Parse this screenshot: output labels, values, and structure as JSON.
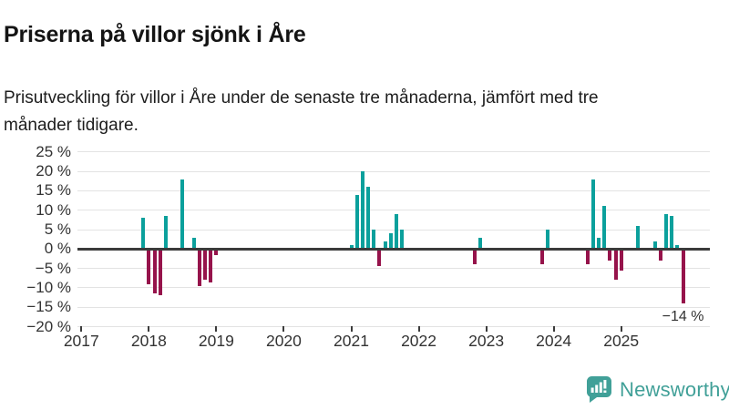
{
  "header": {
    "title": "Priserna på villor sjönk i Åre",
    "subtitle": "Prisutveckling för villor i Åre under de senaste tre månaderna, jämfört med tre månader tidigare."
  },
  "chart_data": {
    "type": "bar",
    "title": "Priserna på villor sjönk i Åre",
    "unit": "%",
    "grid": true,
    "y_axis": {
      "min": -20,
      "max": 25,
      "step": 5,
      "tick_values": [
        25,
        20,
        15,
        10,
        5,
        0,
        -5,
        -10,
        -15,
        -20
      ],
      "tick_labels": [
        "25 %",
        "20 %",
        "15 %",
        "10 %",
        "5 %",
        "0 %",
        "−5 %",
        "−10 %",
        "−15 %",
        "−20 %"
      ]
    },
    "x_axis": {
      "year_labels": [
        "2017",
        "2018",
        "2019",
        "2020",
        "2021",
        "2022",
        "2023",
        "2024",
        "2025"
      ]
    },
    "colors": {
      "positive": "#0ba09c",
      "negative": "#96134b",
      "zero_line": "#3b3b3b",
      "gridline": "#e3e3e3"
    },
    "annotation": {
      "text": "−14 %",
      "month": "2025-12"
    },
    "points": [
      {
        "month": "2017-12",
        "value": 8
      },
      {
        "month": "2018-01",
        "value": -9
      },
      {
        "month": "2018-02",
        "value": -11.5
      },
      {
        "month": "2018-03",
        "value": -12
      },
      {
        "month": "2018-04",
        "value": 8.5
      },
      {
        "month": "2018-07",
        "value": 18
      },
      {
        "month": "2018-09",
        "value": 3
      },
      {
        "month": "2018-10",
        "value": -9.5
      },
      {
        "month": "2018-11",
        "value": -8
      },
      {
        "month": "2018-12",
        "value": -8.5
      },
      {
        "month": "2019-01",
        "value": -1.5
      },
      {
        "month": "2021-01",
        "value": 1
      },
      {
        "month": "2021-02",
        "value": 14
      },
      {
        "month": "2021-03",
        "value": 20
      },
      {
        "month": "2021-04",
        "value": 16
      },
      {
        "month": "2021-05",
        "value": 5
      },
      {
        "month": "2021-06",
        "value": -4.5
      },
      {
        "month": "2021-07",
        "value": 2
      },
      {
        "month": "2021-08",
        "value": 4
      },
      {
        "month": "2021-09",
        "value": 9
      },
      {
        "month": "2021-10",
        "value": 5
      },
      {
        "month": "2022-11",
        "value": -4
      },
      {
        "month": "2022-12",
        "value": 3
      },
      {
        "month": "2023-11",
        "value": -4
      },
      {
        "month": "2023-12",
        "value": 5
      },
      {
        "month": "2024-07",
        "value": -4
      },
      {
        "month": "2024-08",
        "value": 18
      },
      {
        "month": "2024-09",
        "value": 3
      },
      {
        "month": "2024-10",
        "value": 11
      },
      {
        "month": "2024-11",
        "value": -3
      },
      {
        "month": "2024-12",
        "value": -8
      },
      {
        "month": "2025-01",
        "value": -5.5
      },
      {
        "month": "2025-04",
        "value": 6
      },
      {
        "month": "2025-07",
        "value": 2
      },
      {
        "month": "2025-08",
        "value": -3
      },
      {
        "month": "2025-09",
        "value": 9
      },
      {
        "month": "2025-10",
        "value": 8.5
      },
      {
        "month": "2025-11",
        "value": 1
      },
      {
        "month": "2025-12",
        "value": -14
      }
    ]
  },
  "footer": {
    "brand_label": "Newsworthy",
    "brand_color": "#41a098"
  }
}
